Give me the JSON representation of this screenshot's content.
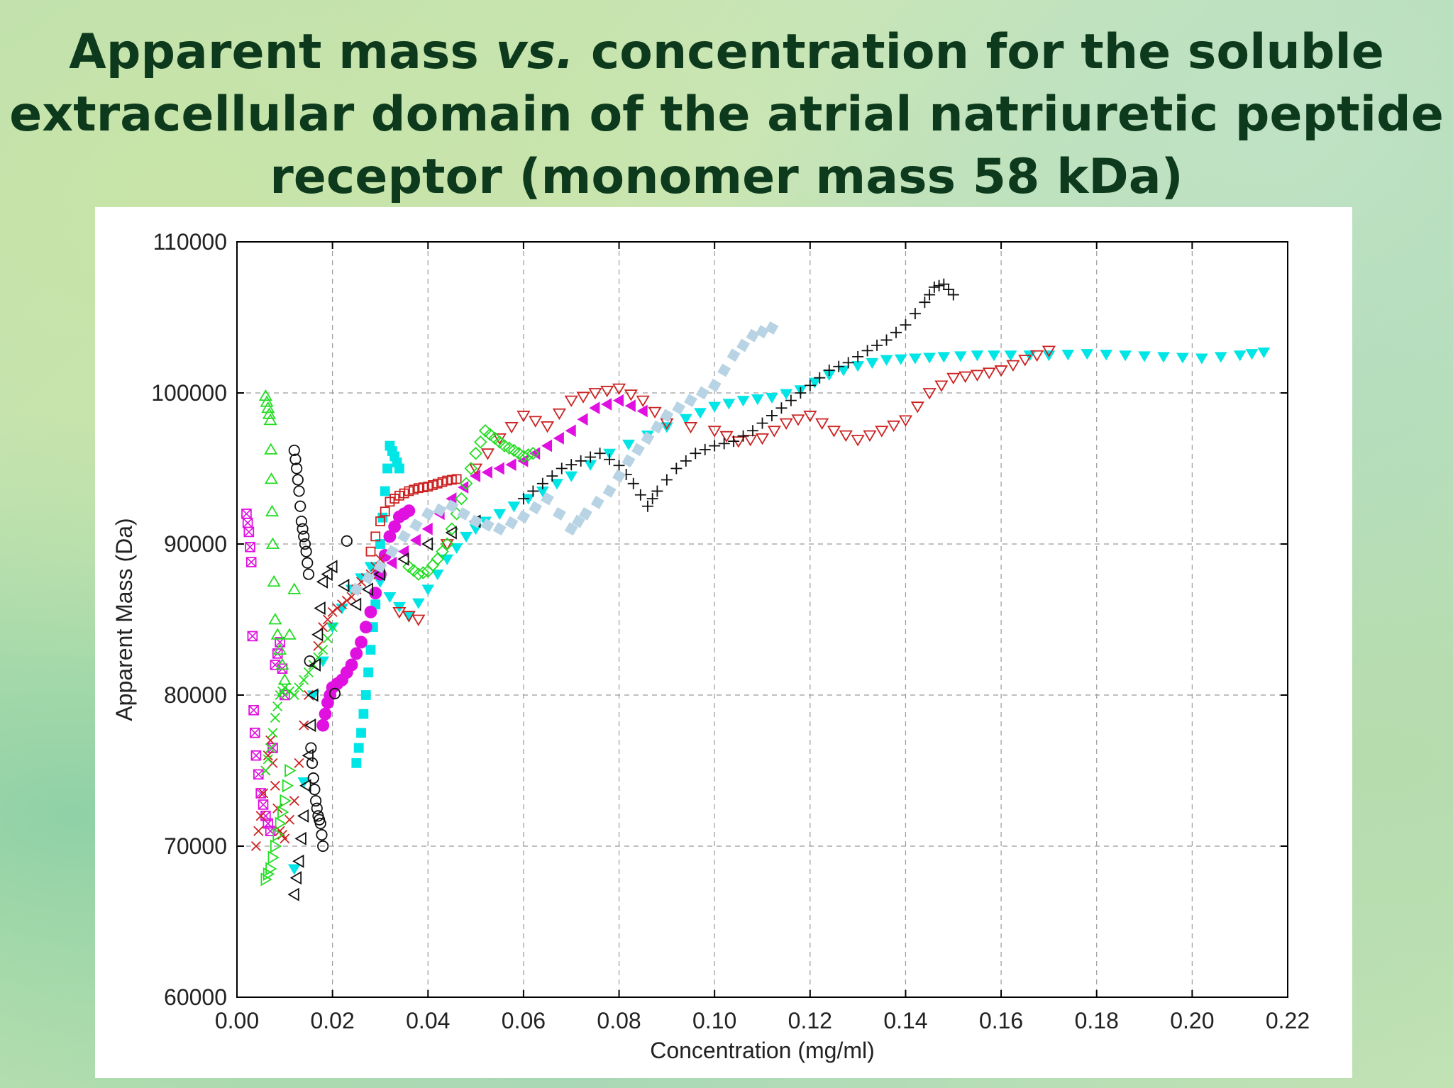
{
  "title": {
    "line1a": "Apparent mass ",
    "line1b": "vs.",
    "line1c": " concentration for the soluble",
    "line2": "extracellular domain of the atrial natriuretic peptide",
    "line3": "receptor (monomer mass 58 kDa)"
  },
  "chart_data": {
    "type": "scatter",
    "xlabel": "Concentration (mg/ml)",
    "ylabel": "Apparent Mass (Da)",
    "xlim": [
      0.0,
      0.22
    ],
    "ylim": [
      60000,
      110000
    ],
    "xticks": [
      "0.00",
      "0.02",
      "0.04",
      "0.06",
      "0.08",
      "0.10",
      "0.12",
      "0.14",
      "0.16",
      "0.18",
      "0.20",
      "0.22"
    ],
    "yticks": [
      "60000",
      "70000",
      "80000",
      "90000",
      "100000",
      "110000"
    ],
    "grid": true,
    "series": [
      {
        "color": "#00e5e5",
        "marker": "filled-triangle-down",
        "x": [
          0.012,
          0.016,
          0.02,
          0.024,
          0.028,
          0.032,
          0.036,
          0.04,
          0.044,
          0.048,
          0.052,
          0.058,
          0.064,
          0.07,
          0.078,
          0.086,
          0.094,
          0.1,
          0.106,
          0.112,
          0.118,
          0.124,
          0.13,
          0.136,
          0.142,
          0.148,
          0.155,
          0.162,
          0.17,
          0.178,
          0.186,
          0.194,
          0.202,
          0.21,
          0.215
        ],
        "y": [
          68500,
          80000,
          84500,
          87000,
          88500,
          86500,
          85200,
          87000,
          89000,
          90500,
          91500,
          92500,
          93500,
          94500,
          96000,
          97200,
          98300,
          99100,
          99500,
          99700,
          100200,
          101200,
          101800,
          102200,
          102300,
          102400,
          102500,
          102500,
          102500,
          102600,
          102500,
          102400,
          102300,
          102500,
          102700
        ]
      },
      {
        "color": "#00e5e5",
        "marker": "filled-square",
        "x": [
          0.025,
          0.026,
          0.027,
          0.028,
          0.029,
          0.03,
          0.031,
          0.032,
          0.033,
          0.034
        ],
        "y": [
          75500,
          77500,
          80000,
          83000,
          86000,
          90000,
          93500,
          96500,
          95800,
          95000
        ]
      },
      {
        "color": "#e011e0",
        "marker": "filled-circle",
        "x": [
          0.018,
          0.019,
          0.02,
          0.022,
          0.024,
          0.026,
          0.028,
          0.03,
          0.032,
          0.034,
          0.036
        ],
        "y": [
          78000,
          79500,
          80500,
          81000,
          82000,
          83500,
          85500,
          88000,
          90500,
          91800,
          92200
        ]
      },
      {
        "color": "#e011e0",
        "marker": "filled-triangle-left",
        "x": [
          0.03,
          0.035,
          0.04,
          0.045,
          0.05,
          0.055,
          0.06,
          0.065,
          0.07,
          0.075,
          0.08,
          0.085
        ],
        "y": [
          88000,
          89500,
          91000,
          93000,
          94500,
          95000,
          95500,
          96500,
          97500,
          99000,
          99500,
          98800
        ]
      },
      {
        "color": "#e011e0",
        "marker": "square-x",
        "x": [
          0.002,
          0.0025,
          0.003,
          0.0035,
          0.004,
          0.005,
          0.006,
          0.007,
          0.008,
          0.009,
          0.01
        ],
        "y": [
          92000,
          90800,
          88800,
          79000,
          76000,
          73500,
          72000,
          71000,
          82000,
          83500,
          80000
        ]
      },
      {
        "color": "#cc2222",
        "marker": "open-square",
        "x": [
          0.028,
          0.03,
          0.032,
          0.034,
          0.036,
          0.038,
          0.04,
          0.042,
          0.044,
          0.046
        ],
        "y": [
          89500,
          91500,
          92800,
          93200,
          93500,
          93700,
          93800,
          94000,
          94200,
          94300
        ]
      },
      {
        "color": "#cc2222",
        "marker": "x",
        "x": [
          0.004,
          0.005,
          0.006,
          0.007,
          0.008,
          0.009,
          0.01,
          0.012,
          0.014,
          0.016,
          0.018,
          0.02,
          0.022,
          0.024,
          0.026,
          0.028,
          0.03
        ],
        "y": [
          70000,
          72000,
          75000,
          77000,
          74000,
          71000,
          70500,
          73000,
          78000,
          82000,
          84500,
          85500,
          86000,
          86500,
          87500,
          88000,
          89000
        ]
      },
      {
        "color": "#cc2222",
        "marker": "open-triangle-down",
        "x": [
          0.034,
          0.038,
          0.05,
          0.055,
          0.06,
          0.065,
          0.07,
          0.075,
          0.08,
          0.085,
          0.09,
          0.1,
          0.105,
          0.11,
          0.115,
          0.12,
          0.125,
          0.13,
          0.135,
          0.14,
          0.145,
          0.15,
          0.155,
          0.16,
          0.165,
          0.17
        ],
        "y": [
          85500,
          85000,
          95000,
          97000,
          98500,
          97800,
          99500,
          100000,
          100300,
          99500,
          98000,
          97500,
          96800,
          97000,
          98000,
          98500,
          97500,
          96900,
          97500,
          98200,
          100000,
          101000,
          101200,
          101500,
          102200,
          102800
        ]
      },
      {
        "color": "#22dd22",
        "marker": "open-triangle-up",
        "x": [
          0.006,
          0.0065,
          0.007,
          0.0072,
          0.0075,
          0.008,
          0.009,
          0.01,
          0.012
        ],
        "y": [
          99800,
          99000,
          98200,
          94300,
          90000,
          85000,
          83000,
          81000,
          87000
        ]
      },
      {
        "color": "#22dd22",
        "marker": "open-diamond",
        "x": [
          0.036,
          0.038,
          0.04,
          0.042,
          0.044,
          0.046,
          0.048,
          0.05,
          0.052,
          0.054,
          0.056,
          0.058,
          0.06,
          0.062
        ],
        "y": [
          88500,
          88000,
          88200,
          89000,
          90000,
          92000,
          94000,
          96000,
          97500,
          97000,
          96500,
          96200,
          95800,
          96000
        ]
      },
      {
        "color": "#22dd22",
        "marker": "x",
        "x": [
          0.006,
          0.007,
          0.008,
          0.009,
          0.01,
          0.012,
          0.014,
          0.016,
          0.018,
          0.02
        ],
        "y": [
          75000,
          76500,
          78500,
          80000,
          80500,
          80000,
          81000,
          82000,
          83000,
          84500
        ]
      },
      {
        "color": "#22dd22",
        "marker": "open-triangle-right",
        "x": [
          0.006,
          0.007,
          0.008,
          0.009,
          0.01,
          0.011
        ],
        "y": [
          67800,
          68500,
          70000,
          71500,
          73000,
          75000
        ]
      },
      {
        "color": "#111111",
        "marker": "open-circle",
        "x": [
          0.012,
          0.0125,
          0.013,
          0.0135,
          0.014,
          0.0145,
          0.015,
          0.0155,
          0.016,
          0.0165,
          0.017,
          0.0175,
          0.018,
          0.023
        ],
        "y": [
          96200,
          95000,
          93500,
          91500,
          90500,
          89500,
          88000,
          76500,
          74500,
          73000,
          72000,
          71500,
          70000,
          90200
        ]
      },
      {
        "color": "#111111",
        "marker": "open-triangle-left",
        "x": [
          0.012,
          0.013,
          0.014,
          0.015,
          0.016,
          0.017,
          0.018,
          0.02,
          0.025,
          0.03,
          0.04,
          0.05
        ],
        "y": [
          66800,
          69000,
          72000,
          76000,
          80000,
          84000,
          87500,
          88500,
          86000,
          88000,
          90000,
          91500
        ]
      },
      {
        "color": "#111111",
        "marker": "plus",
        "x": [
          0.06,
          0.064,
          0.068,
          0.072,
          0.076,
          0.08,
          0.083,
          0.086,
          0.088,
          0.092,
          0.096,
          0.1,
          0.104,
          0.108,
          0.112,
          0.116,
          0.12,
          0.124,
          0.128,
          0.132,
          0.136,
          0.14,
          0.144,
          0.146,
          0.148,
          0.15
        ],
        "y": [
          93000,
          94000,
          95000,
          95500,
          96000,
          95200,
          94000,
          92500,
          93500,
          95000,
          96000,
          96500,
          96800,
          97500,
          98500,
          99500,
          100500,
          101500,
          102000,
          102800,
          103500,
          104500,
          106000,
          107000,
          107200,
          106500
        ]
      },
      {
        "color": "#b8d4e4",
        "marker": "filled-square-diag",
        "x": [
          0.025,
          0.03,
          0.035,
          0.04,
          0.045,
          0.05,
          0.055,
          0.06,
          0.065,
          0.07,
          0.073,
          0.078,
          0.082,
          0.086,
          0.09,
          0.095,
          0.1,
          0.104,
          0.108,
          0.112
        ],
        "y": [
          87000,
          88500,
          90500,
          92000,
          92500,
          91500,
          91000,
          91800,
          93000,
          91000,
          92000,
          93500,
          95500,
          97000,
          98500,
          99500,
          100500,
          102500,
          103800,
          104300
        ]
      }
    ]
  }
}
